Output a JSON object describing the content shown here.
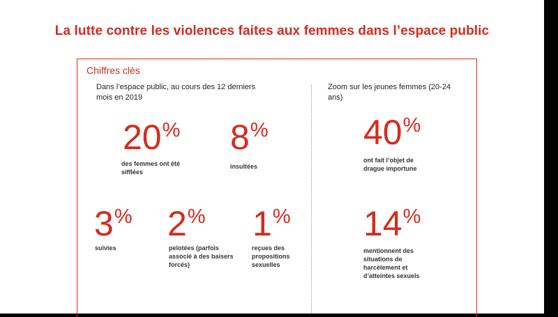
{
  "title": "La lutte contre les violences faites aux femmes dans l’espace public",
  "section": "Chiffres clés",
  "left_heading": "Dans l’espace public, au cours des 12 derniers mois en 2019",
  "right_heading": "Zoom sur les jeunes femmes (20-24 ans)",
  "stats": [
    {
      "number": "20",
      "unit": "%",
      "caption": "des femmes ont été sifflées"
    },
    {
      "number": "8",
      "unit": "%",
      "caption": "insultées"
    },
    {
      "number": "3",
      "unit": "%",
      "caption": "suivies"
    },
    {
      "number": "2",
      "unit": "%",
      "caption": "pelotées (parfois associé à des baisers forcés)"
    },
    {
      "number": "1",
      "unit": "%",
      "caption": "reçues des propositions sexuelles"
    }
  ],
  "young_women_stats": [
    {
      "number": "40",
      "unit": "%",
      "caption": "ont fait l’objet de drague importune"
    },
    {
      "number": "14",
      "unit": "%",
      "caption": "mentionnent des situations de harcèlement et d’atteintes sexuels"
    }
  ],
  "colors": {
    "accent": "#d52b1e",
    "text": "#333333",
    "background": "#ffffff"
  }
}
